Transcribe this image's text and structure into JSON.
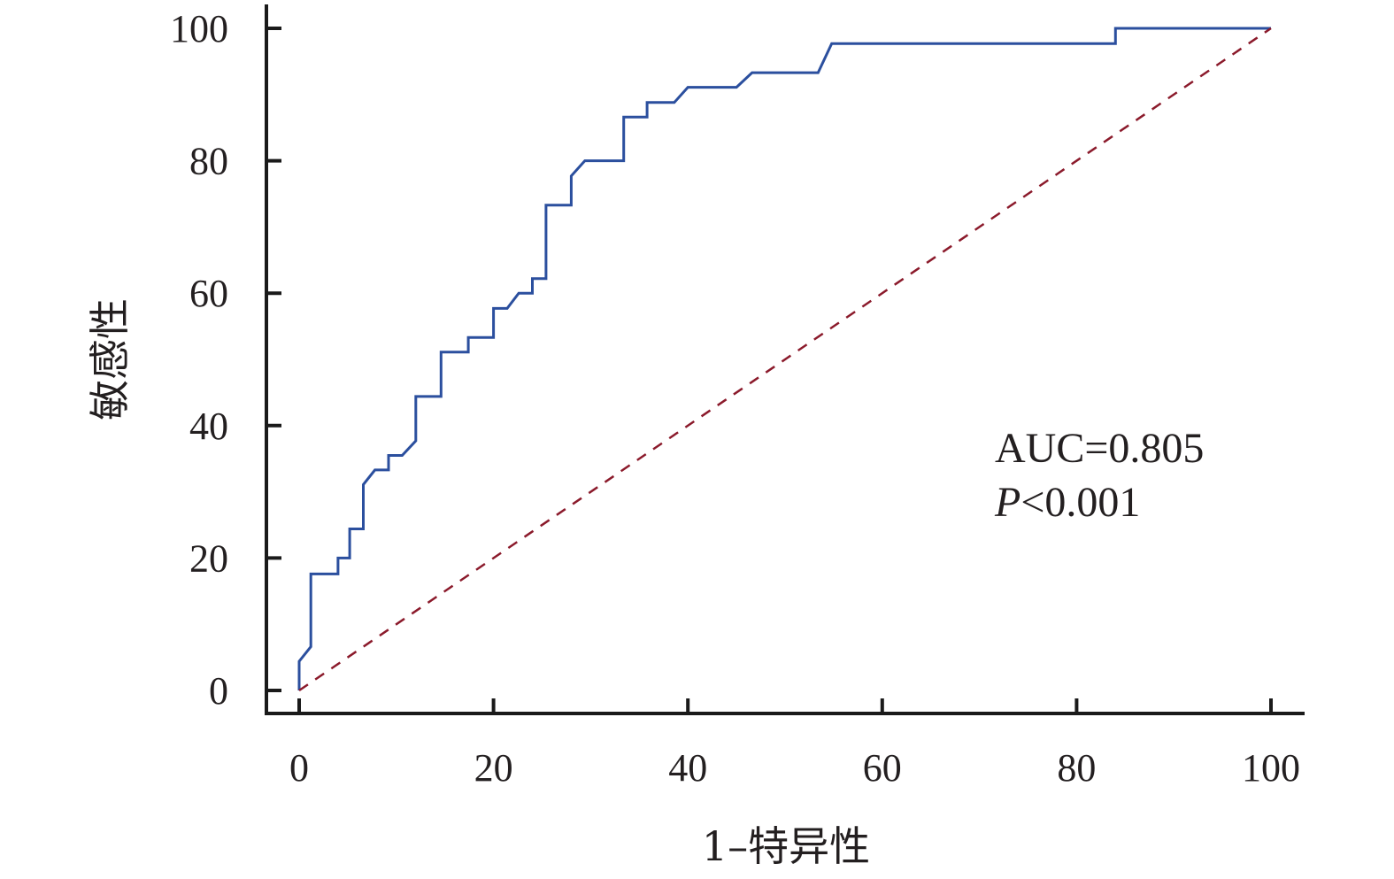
{
  "chart_data": {
    "type": "line",
    "xlabel": "1–特异性",
    "ylabel": "敏感性",
    "xlim": [
      0,
      100
    ],
    "ylim": [
      0,
      100
    ],
    "x_ticks": [
      "0",
      "20",
      "40",
      "60",
      "80",
      "100"
    ],
    "y_ticks": [
      "0",
      "20",
      "40",
      "60",
      "80",
      "100"
    ],
    "grid": false,
    "annotations": {
      "auc": "AUC=0.805",
      "p_symbol": "P",
      "p_value": "<0.001"
    },
    "series": [
      {
        "color": "#2b4f9e",
        "style": "step",
        "points": [
          [
            0,
            0
          ],
          [
            0,
            4.4
          ],
          [
            1.2,
            6.6
          ],
          [
            1.2,
            17.6
          ],
          [
            4,
            17.6
          ],
          [
            4,
            20
          ],
          [
            5.2,
            20
          ],
          [
            5.2,
            24.4
          ],
          [
            6.6,
            24.4
          ],
          [
            6.6,
            31.1
          ],
          [
            7.8,
            33.3
          ],
          [
            9.2,
            33.3
          ],
          [
            9.2,
            35.5
          ],
          [
            10.6,
            35.5
          ],
          [
            12,
            37.7
          ],
          [
            12,
            44.4
          ],
          [
            14.6,
            44.4
          ],
          [
            14.6,
            51.1
          ],
          [
            17.4,
            51.1
          ],
          [
            17.4,
            53.3
          ],
          [
            20,
            53.3
          ],
          [
            20,
            57.7
          ],
          [
            21.4,
            57.7
          ],
          [
            22.6,
            60
          ],
          [
            24,
            60
          ],
          [
            24,
            62.2
          ],
          [
            25.4,
            62.2
          ],
          [
            25.4,
            73.3
          ],
          [
            28,
            73.3
          ],
          [
            28,
            77.7
          ],
          [
            29.4,
            80
          ],
          [
            33.4,
            80
          ],
          [
            33.4,
            86.6
          ],
          [
            35.8,
            86.6
          ],
          [
            35.8,
            88.8
          ],
          [
            38.6,
            88.8
          ],
          [
            40,
            91.1
          ],
          [
            45,
            91.1
          ],
          [
            46.6,
            93.3
          ],
          [
            53.4,
            93.3
          ],
          [
            54.8,
            97.7
          ],
          [
            84,
            97.7
          ],
          [
            84,
            100
          ],
          [
            100,
            100
          ]
        ]
      },
      {
        "color": "#8b1a2b",
        "style": "dashed",
        "points": [
          [
            0,
            0
          ],
          [
            100,
            100
          ]
        ]
      }
    ]
  }
}
